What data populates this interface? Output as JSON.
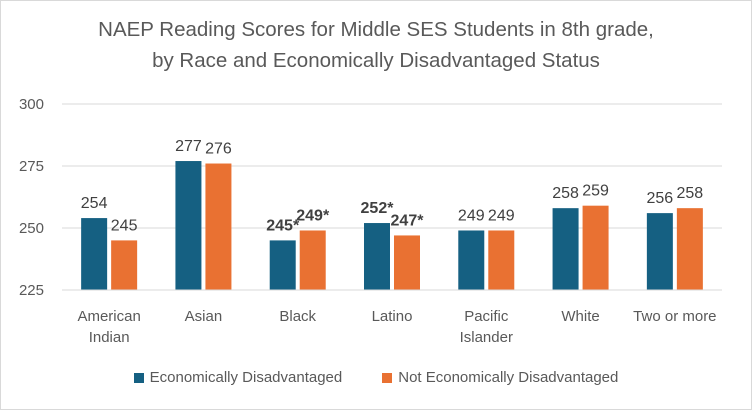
{
  "chart_data": {
    "type": "bar",
    "title_lines": [
      "NAEP Reading Scores for Middle SES Students in 8th grade,",
      "by Race and Economically Disadvantaged Status"
    ],
    "categories": [
      [
        "American",
        "Indian"
      ],
      [
        "Asian"
      ],
      [
        "Black"
      ],
      [
        "Latino"
      ],
      [
        "Pacific",
        "Islander"
      ],
      [
        "White"
      ],
      [
        "Two or more"
      ]
    ],
    "series": [
      {
        "name": "Economically Disadvantaged",
        "color": "#156082",
        "values": [
          254,
          277,
          245,
          252,
          249,
          258,
          256
        ],
        "labels": [
          "254",
          "277",
          "245*",
          "252*",
          "249",
          "258",
          "256"
        ],
        "bold": [
          false,
          false,
          true,
          true,
          false,
          false,
          false
        ]
      },
      {
        "name": "Not Economically Disadvantaged",
        "color": "#E97132",
        "values": [
          245,
          276,
          249,
          247,
          249,
          259,
          258
        ],
        "labels": [
          "245",
          "276",
          "249*",
          "247*",
          "249",
          "259",
          "258"
        ],
        "bold": [
          false,
          false,
          true,
          true,
          false,
          false,
          false
        ]
      }
    ],
    "ylim": [
      225,
      300
    ],
    "yticks": [
      225,
      250,
      275,
      300
    ],
    "grid": true,
    "legend_position": "bottom"
  }
}
